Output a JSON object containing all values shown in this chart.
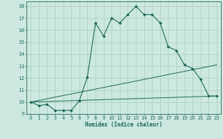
{
  "xlabel": "Humidex (Indice chaleur)",
  "background_color": "#cce8e0",
  "grid_color": "#aaccbb",
  "line_color": "#1a6655",
  "xlim": [
    -0.5,
    23.5
  ],
  "ylim": [
    9,
    18.4
  ],
  "xticks": [
    0,
    1,
    2,
    3,
    4,
    5,
    6,
    7,
    8,
    9,
    10,
    11,
    12,
    13,
    14,
    15,
    16,
    17,
    18,
    19,
    20,
    21,
    22,
    23
  ],
  "yticks": [
    9,
    10,
    11,
    12,
    13,
    14,
    15,
    16,
    17,
    18
  ],
  "curve1_x": [
    0,
    1,
    2,
    3,
    4,
    5,
    6,
    7,
    8,
    9,
    10,
    11,
    12,
    13,
    14,
    15,
    16,
    17,
    18,
    19,
    20,
    21,
    22,
    23
  ],
  "curve1_y": [
    10.0,
    9.7,
    9.8,
    9.3,
    9.3,
    9.3,
    10.1,
    12.1,
    16.6,
    15.5,
    17.0,
    16.6,
    17.3,
    18.0,
    17.3,
    17.3,
    16.6,
    14.6,
    14.3,
    13.1,
    12.8,
    11.9,
    10.5,
    10.5
  ],
  "curve2_x": [
    0,
    23
  ],
  "curve2_y": [
    10.0,
    13.1
  ],
  "curve3_x": [
    0,
    23
  ],
  "curve3_y": [
    10.0,
    10.5
  ]
}
